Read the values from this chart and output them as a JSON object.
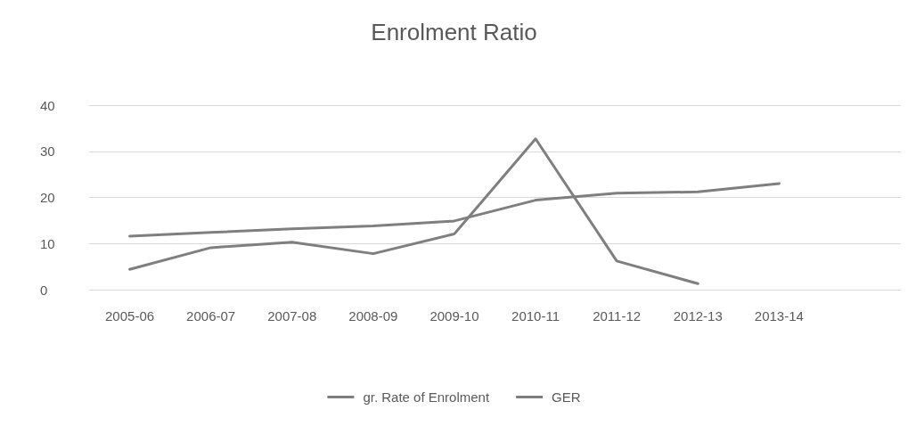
{
  "chart_data": {
    "type": "line",
    "title": "Enrolment Ratio",
    "categories": [
      "2005-06",
      "2006-07",
      "2007-08",
      "2008-09",
      "2009-10",
      "2010-11",
      "2011-12",
      "2012-13",
      "2013-14",
      null
    ],
    "series": [
      {
        "name": "gr. Rate of Enrolment",
        "color": "#7f7f7f",
        "values": [
          4.4,
          9.1,
          10.3,
          7.8,
          12.1,
          32.7,
          6.2,
          1.3,
          null,
          null
        ]
      },
      {
        "name": "GER",
        "color": "#7f7f7f",
        "values": [
          11.6,
          12.4,
          13.2,
          13.8,
          14.9,
          19.4,
          20.9,
          21.2,
          23.0,
          null
        ]
      }
    ],
    "ylim": [
      0,
      40
    ],
    "yticks": [
      0,
      10,
      20,
      30,
      40
    ],
    "grid": "y",
    "legend": "bottom",
    "marker": "none",
    "line_style": "solid"
  }
}
